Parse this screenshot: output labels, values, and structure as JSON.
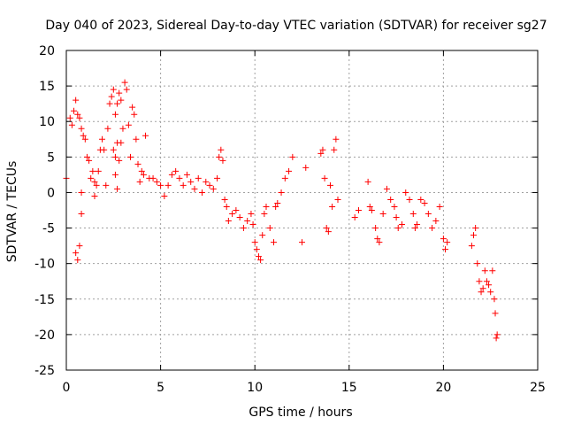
{
  "chart_data": {
    "type": "scatter",
    "title": "Day 040 of 2023, Sidereal Day-to-day VTEC variation (SDTVAR) for receiver sg27",
    "xlabel": "GPS time / hours",
    "ylabel": "SDTVAR / TECUs",
    "xlim": [
      0,
      25
    ],
    "ylim": [
      -25,
      20
    ],
    "x_ticks": [
      0,
      5,
      10,
      15,
      20,
      25
    ],
    "y_ticks": [
      -25,
      -20,
      -15,
      -10,
      -5,
      0,
      5,
      10,
      15,
      20
    ],
    "grid": true,
    "marker": "plus",
    "color": "#ff0000",
    "series": [
      {
        "name": "SDTVAR",
        "points": [
          [
            0.0,
            2.0
          ],
          [
            0.2,
            10.5
          ],
          [
            0.3,
            9.5
          ],
          [
            0.4,
            11.5
          ],
          [
            0.5,
            13.0
          ],
          [
            0.6,
            11.0
          ],
          [
            0.7,
            10.5
          ],
          [
            0.8,
            9.0
          ],
          [
            0.5,
            -8.5
          ],
          [
            0.6,
            -9.5
          ],
          [
            0.7,
            -7.5
          ],
          [
            0.8,
            -3.0
          ],
          [
            0.8,
            0.0
          ],
          [
            0.9,
            8.0
          ],
          [
            1.0,
            7.5
          ],
          [
            1.1,
            5.0
          ],
          [
            1.2,
            4.5
          ],
          [
            1.3,
            2.0
          ],
          [
            1.4,
            3.0
          ],
          [
            1.5,
            1.5
          ],
          [
            1.5,
            -0.5
          ],
          [
            1.6,
            1.0
          ],
          [
            1.7,
            3.0
          ],
          [
            1.8,
            6.0
          ],
          [
            1.9,
            7.5
          ],
          [
            2.0,
            6.0
          ],
          [
            2.1,
            1.0
          ],
          [
            2.2,
            9.0
          ],
          [
            2.3,
            12.5
          ],
          [
            2.4,
            13.5
          ],
          [
            2.5,
            14.5
          ],
          [
            2.6,
            11.0
          ],
          [
            2.7,
            12.5
          ],
          [
            2.8,
            14.0
          ],
          [
            2.9,
            13.0
          ],
          [
            2.5,
            6.0
          ],
          [
            2.6,
            5.0
          ],
          [
            2.7,
            7.0
          ],
          [
            2.8,
            4.5
          ],
          [
            2.9,
            7.0
          ],
          [
            2.6,
            2.5
          ],
          [
            2.7,
            0.5
          ],
          [
            3.0,
            9.0
          ],
          [
            3.1,
            15.5
          ],
          [
            3.2,
            14.5
          ],
          [
            3.3,
            9.5
          ],
          [
            3.4,
            5.0
          ],
          [
            3.5,
            12.0
          ],
          [
            3.6,
            11.0
          ],
          [
            3.7,
            7.5
          ],
          [
            3.8,
            4.0
          ],
          [
            3.9,
            1.5
          ],
          [
            4.0,
            3.0
          ],
          [
            4.1,
            2.5
          ],
          [
            4.2,
            8.0
          ],
          [
            4.4,
            2.0
          ],
          [
            4.6,
            2.0
          ],
          [
            4.8,
            1.5
          ],
          [
            5.0,
            1.0
          ],
          [
            5.2,
            -0.5
          ],
          [
            5.4,
            1.0
          ],
          [
            5.6,
            2.5
          ],
          [
            5.8,
            3.0
          ],
          [
            6.0,
            2.0
          ],
          [
            6.2,
            1.0
          ],
          [
            6.4,
            2.5
          ],
          [
            6.6,
            1.5
          ],
          [
            6.8,
            0.5
          ],
          [
            7.0,
            2.0
          ],
          [
            7.2,
            0.0
          ],
          [
            7.4,
            1.5
          ],
          [
            7.6,
            1.0
          ],
          [
            7.8,
            0.5
          ],
          [
            8.0,
            2.0
          ],
          [
            8.1,
            5.0
          ],
          [
            8.2,
            6.0
          ],
          [
            8.3,
            4.5
          ],
          [
            8.4,
            -1.0
          ],
          [
            8.5,
            -2.0
          ],
          [
            8.6,
            -4.0
          ],
          [
            8.8,
            -3.0
          ],
          [
            9.0,
            -2.5
          ],
          [
            9.2,
            -3.5
          ],
          [
            9.4,
            -5.0
          ],
          [
            9.6,
            -4.0
          ],
          [
            9.8,
            -3.0
          ],
          [
            9.9,
            -4.5
          ],
          [
            10.0,
            -7.0
          ],
          [
            10.1,
            -8.0
          ],
          [
            10.2,
            -9.0
          ],
          [
            10.3,
            -9.5
          ],
          [
            10.4,
            -6.0
          ],
          [
            10.5,
            -3.0
          ],
          [
            10.6,
            -2.0
          ],
          [
            10.8,
            -5.0
          ],
          [
            11.0,
            -7.0
          ],
          [
            11.1,
            -2.0
          ],
          [
            11.2,
            -1.5
          ],
          [
            11.4,
            0.0
          ],
          [
            11.6,
            2.0
          ],
          [
            11.8,
            3.0
          ],
          [
            12.0,
            5.0
          ],
          [
            12.5,
            -7.0
          ],
          [
            12.7,
            3.5
          ],
          [
            13.5,
            5.5
          ],
          [
            13.6,
            6.0
          ],
          [
            13.7,
            2.0
          ],
          [
            13.8,
            -5.0
          ],
          [
            13.9,
            -5.5
          ],
          [
            14.0,
            1.0
          ],
          [
            14.1,
            -2.0
          ],
          [
            14.2,
            6.0
          ],
          [
            14.3,
            7.5
          ],
          [
            14.4,
            -1.0
          ],
          [
            15.3,
            -3.5
          ],
          [
            15.5,
            -2.5
          ],
          [
            16.0,
            1.5
          ],
          [
            16.1,
            -2.0
          ],
          [
            16.2,
            -2.5
          ],
          [
            16.4,
            -5.0
          ],
          [
            16.5,
            -6.5
          ],
          [
            16.6,
            -7.0
          ],
          [
            16.8,
            -3.0
          ],
          [
            17.0,
            0.5
          ],
          [
            17.2,
            -1.0
          ],
          [
            17.4,
            -2.0
          ],
          [
            17.5,
            -3.5
          ],
          [
            17.6,
            -5.0
          ],
          [
            17.8,
            -4.5
          ],
          [
            18.0,
            0.0
          ],
          [
            18.2,
            -1.0
          ],
          [
            18.4,
            -3.0
          ],
          [
            18.5,
            -5.0
          ],
          [
            18.6,
            -4.5
          ],
          [
            18.8,
            -1.0
          ],
          [
            19.0,
            -1.5
          ],
          [
            19.2,
            -3.0
          ],
          [
            19.4,
            -5.0
          ],
          [
            19.6,
            -4.0
          ],
          [
            19.8,
            -2.0
          ],
          [
            20.0,
            -6.5
          ],
          [
            20.1,
            -8.0
          ],
          [
            20.2,
            -7.0
          ],
          [
            21.5,
            -7.5
          ],
          [
            21.6,
            -6.0
          ],
          [
            21.7,
            -5.0
          ],
          [
            21.8,
            -10.0
          ],
          [
            21.9,
            -12.5
          ],
          [
            22.0,
            -14.0
          ],
          [
            22.1,
            -13.5
          ],
          [
            22.2,
            -11.0
          ],
          [
            22.3,
            -12.5
          ],
          [
            22.4,
            -13.0
          ],
          [
            22.5,
            -14.0
          ],
          [
            22.6,
            -11.0
          ],
          [
            22.7,
            -15.0
          ],
          [
            22.75,
            -17.0
          ],
          [
            22.8,
            -20.5
          ],
          [
            22.85,
            -20.0
          ]
        ]
      }
    ]
  }
}
